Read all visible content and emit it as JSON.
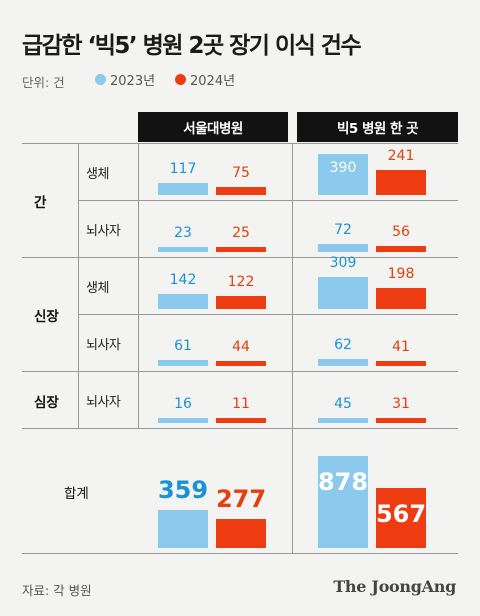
{
  "title": "급감한 ‘빅5’ 병원 2곳 장기 이식 건수",
  "unit": "단위: 건",
  "source": "자료: 각 병원",
  "brand": "The JoongAng",
  "colors": {
    "y2023": "#8ccaed",
    "y2024": "#ee3c12",
    "label2023": "#1a93d3",
    "label2024": "#e2400f",
    "header_bg": "#121212"
  },
  "chart_data": {
    "type": "bar",
    "title": "급감한 ‘빅5’ 병원 2곳 장기 이식 건수",
    "unit": "단위: 건",
    "legend": [
      "2023년",
      "2024년"
    ],
    "columns": [
      "서울대병원",
      "빅5 병원 한 곳"
    ],
    "groups": [
      {
        "organ": "간",
        "rows": [
          {
            "type": "생체",
            "values": [
              [
                117,
                75
              ],
              [
                390,
                241
              ]
            ]
          },
          {
            "type": "뇌사자",
            "values": [
              [
                23,
                25
              ],
              [
                72,
                56
              ]
            ]
          }
        ]
      },
      {
        "organ": "신장",
        "rows": [
          {
            "type": "생체",
            "values": [
              [
                142,
                122
              ],
              [
                309,
                198
              ]
            ]
          },
          {
            "type": "뇌사자",
            "values": [
              [
                61,
                44
              ],
              [
                62,
                41
              ]
            ]
          }
        ]
      },
      {
        "organ": "심장",
        "rows": [
          {
            "type": "뇌사자",
            "values": [
              [
                16,
                11
              ],
              [
                45,
                31
              ]
            ]
          }
        ]
      }
    ],
    "total": {
      "label": "합계",
      "values": [
        [
          359,
          277
        ],
        [
          878,
          567
        ]
      ]
    }
  }
}
